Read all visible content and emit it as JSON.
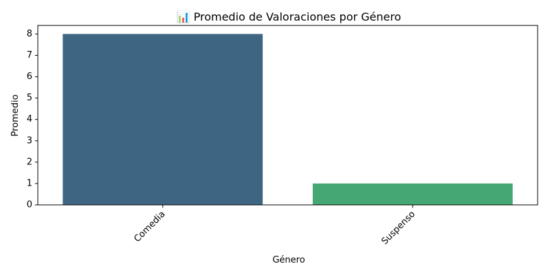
{
  "chart_data": {
    "type": "bar",
    "title": "📊 Promedio de Valoraciones por Género",
    "title_icon": "bar-chart-icon",
    "xlabel": "Género",
    "ylabel": "Promedio",
    "categories": [
      "Comedia",
      "Suspenso"
    ],
    "values": [
      8,
      1
    ],
    "colors": [
      "#3e6683",
      "#45a874"
    ],
    "ylim": [
      0,
      8.4
    ],
    "yticks": [
      0,
      1,
      2,
      3,
      4,
      5,
      6,
      7,
      8
    ],
    "grid": false,
    "xtick_rotation_deg": 45
  }
}
